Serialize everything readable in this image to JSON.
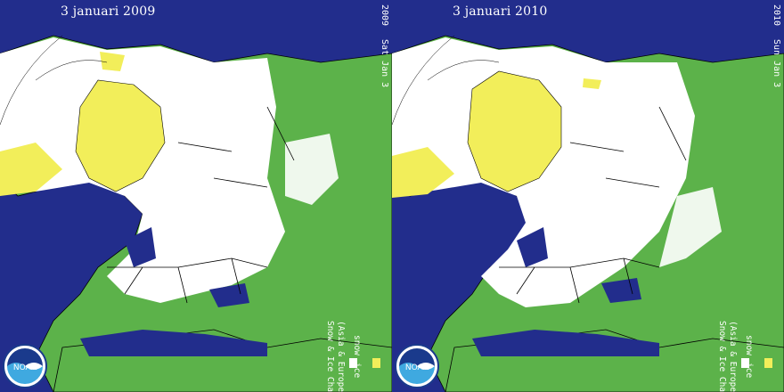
{
  "panels": [
    {
      "title": "3 januari 2009",
      "year_vertical": "2009",
      "date_vertical": "Sat Jan  3",
      "chart_label": "Snow & Ice Chart",
      "chart_sub": "(Asia & Europe)",
      "legend": {
        "snow": "snow",
        "ice": "ice"
      },
      "logo": "NOAA"
    },
    {
      "title": "3 januari 2010",
      "year_vertical": "2010",
      "date_vertical": "Sun Jan  3",
      "chart_label": "Snow & Ice Chart",
      "chart_sub": "(Asia & Europe)",
      "legend": {
        "snow": "snow",
        "ice": "ice"
      },
      "logo": "NOAA"
    }
  ],
  "colors": {
    "ocean": "#222d8c",
    "land": "#5cb24a",
    "snow": "#ffffff",
    "ice": "#f2ee5a",
    "border": "#000000"
  }
}
